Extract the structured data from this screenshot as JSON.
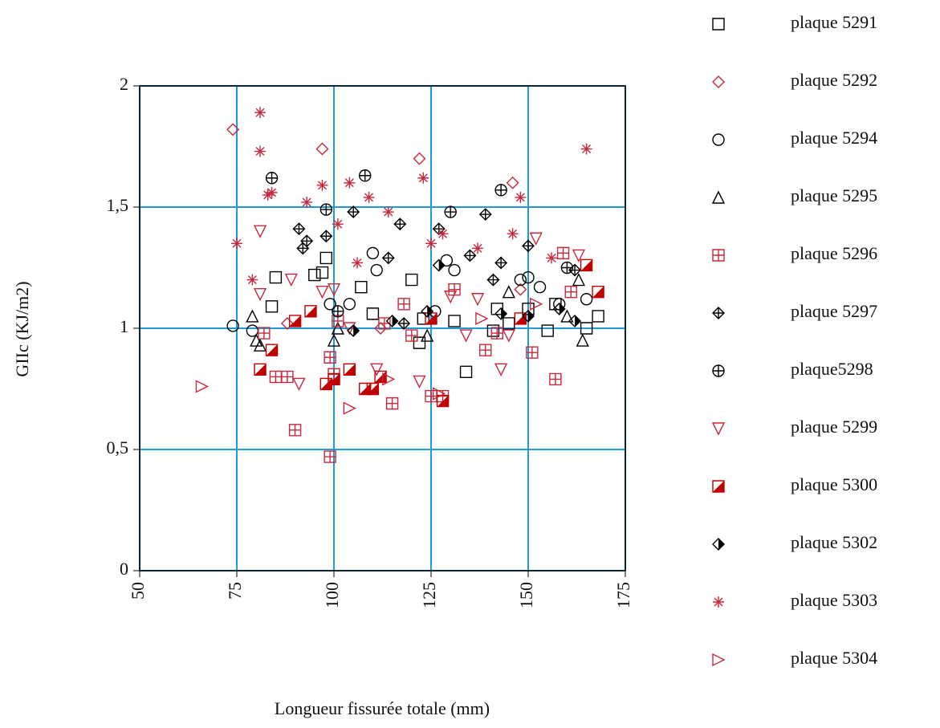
{
  "chart_data": {
    "type": "scatter",
    "x_label": "Longueur fissurée totale (mm)",
    "y_label": "GIIc (KJ/m2)",
    "xlim": [
      50,
      175
    ],
    "xticks": [
      50,
      75,
      100,
      125,
      150,
      175
    ],
    "ylim": [
      0,
      2
    ],
    "yticks": [
      0,
      {
        "value": 0.5,
        "label": "0,5"
      },
      1,
      {
        "value": 1.5,
        "label": "1,5"
      },
      2
    ],
    "grid": true,
    "grid_color": "#1e9bd7",
    "legend": "right",
    "series": [
      {
        "name": "plaque 5291",
        "color": "#000000",
        "marker": "square",
        "x": [
          85,
          84,
          95,
          97,
          98,
          107,
          110,
          120,
          122,
          123,
          131,
          134,
          141,
          142,
          145,
          150,
          155,
          157,
          165,
          168
        ],
        "values": [
          1.21,
          1.09,
          1.22,
          1.23,
          1.29,
          1.17,
          1.06,
          1.2,
          0.94,
          1.04,
          1.03,
          0.82,
          0.99,
          1.08,
          1.02,
          1.08,
          0.99,
          1.1,
          1.0,
          1.05
        ]
      },
      {
        "name": "plaque 5292",
        "color": "#c8283c",
        "marker": "diamond",
        "x": [
          74,
          97,
          122,
          146,
          148,
          112,
          88
        ],
        "values": [
          1.82,
          1.74,
          1.7,
          1.6,
          1.16,
          1.0,
          1.02
        ]
      },
      {
        "name": "plaque 5294",
        "color": "#000000",
        "marker": "circle",
        "x": [
          74,
          79,
          99,
          104,
          110,
          111,
          126,
          129,
          131,
          148,
          150,
          153,
          158,
          165
        ],
        "values": [
          1.01,
          0.99,
          1.1,
          1.1,
          1.31,
          1.24,
          1.07,
          1.28,
          1.24,
          1.2,
          1.21,
          1.17,
          1.1,
          1.12
        ]
      },
      {
        "name": "plaque 5295",
        "color": "#000000",
        "marker": "triangle-up",
        "x": [
          79,
          80,
          81,
          100,
          101,
          124,
          145,
          160,
          164,
          163
        ],
        "values": [
          1.05,
          0.95,
          0.93,
          0.95,
          1.0,
          0.97,
          1.15,
          1.05,
          0.95,
          1.2
        ]
      },
      {
        "name": "plaque 5296",
        "color": "#c8283c",
        "marker": "square-plus",
        "x": [
          82,
          85,
          88,
          90,
          99,
          99,
          100,
          101,
          113,
          115,
          118,
          120,
          125,
          128,
          131,
          139,
          142,
          151,
          157,
          159,
          161
        ],
        "values": [
          0.98,
          0.8,
          0.8,
          0.58,
          0.47,
          0.88,
          0.81,
          1.03,
          1.02,
          0.69,
          1.1,
          0.97,
          0.72,
          0.72,
          1.16,
          0.91,
          0.98,
          0.9,
          0.79,
          1.31,
          1.15
        ]
      },
      {
        "name": "plaque 5297",
        "color": "#000000",
        "marker": "diamond-plus",
        "x": [
          91,
          92,
          93,
          98,
          105,
          114,
          117,
          127,
          135,
          139,
          143,
          150,
          162,
          118,
          141
        ],
        "values": [
          1.41,
          1.33,
          1.36,
          1.38,
          1.48,
          1.29,
          1.43,
          1.41,
          1.3,
          1.47,
          1.27,
          1.34,
          1.24,
          1.02,
          1.2
        ]
      },
      {
        "name": "plaque5298",
        "color": "#000000",
        "marker": "circle-plus",
        "x": [
          84,
          98,
          108,
          130,
          143,
          160,
          101
        ],
        "values": [
          1.62,
          1.49,
          1.63,
          1.48,
          1.57,
          1.25,
          1.07
        ]
      },
      {
        "name": "plaque 5299",
        "color": "#c8283c",
        "marker": "triangle-down",
        "x": [
          81,
          81,
          89,
          97,
          100,
          104,
          111,
          122,
          130,
          134,
          137,
          143,
          145,
          152,
          163,
          91
        ],
        "values": [
          1.4,
          1.14,
          1.2,
          1.15,
          1.16,
          1.0,
          0.83,
          0.78,
          1.13,
          0.97,
          1.12,
          0.83,
          0.97,
          1.37,
          1.3,
          0.77
        ]
      },
      {
        "name": "plaque 5300",
        "color": "#c00000",
        "marker": "half-square",
        "x": [
          81,
          84,
          90,
          94,
          98,
          100,
          104,
          108,
          110,
          112,
          125,
          128,
          148,
          165,
          168
        ],
        "values": [
          0.83,
          0.91,
          1.03,
          1.07,
          0.77,
          0.79,
          0.83,
          0.75,
          0.75,
          0.8,
          1.04,
          0.7,
          1.04,
          1.26,
          1.15
        ]
      },
      {
        "name": "plaque 5302",
        "color": "#000000",
        "marker": "half-diamond",
        "x": [
          105,
          115,
          124,
          127,
          143,
          150,
          158,
          162
        ],
        "values": [
          0.99,
          1.03,
          1.07,
          1.26,
          1.06,
          1.05,
          1.08,
          1.03
        ]
      },
      {
        "name": "plaque 5303",
        "color": "#c8283c",
        "marker": "asterisk",
        "x": [
          75,
          79,
          81,
          81,
          83,
          84,
          93,
          97,
          101,
          104,
          106,
          109,
          114,
          123,
          125,
          128,
          137,
          146,
          148,
          156,
          165
        ],
        "values": [
          1.35,
          1.2,
          1.89,
          1.73,
          1.55,
          1.56,
          1.52,
          1.59,
          1.43,
          1.6,
          1.27,
          1.54,
          1.48,
          1.62,
          1.35,
          1.39,
          1.33,
          1.39,
          1.54,
          1.29,
          1.74
        ]
      },
      {
        "name": "plaque 5304",
        "color": "#c8283c",
        "marker": "triangle-right",
        "x": [
          66,
          104,
          114,
          127,
          138,
          152
        ],
        "values": [
          0.76,
          0.67,
          0.79,
          0.73,
          1.04,
          1.1
        ]
      }
    ]
  }
}
